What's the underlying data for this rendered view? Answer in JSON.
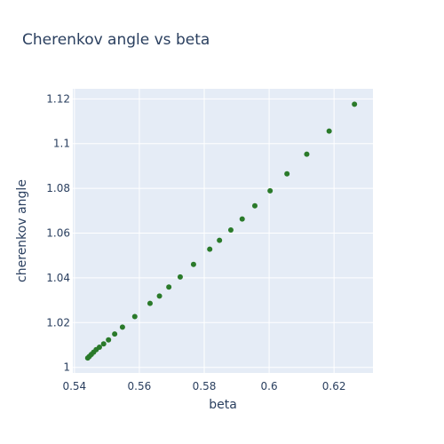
{
  "chart_data": {
    "type": "scatter",
    "title": "Cherenkov angle vs beta",
    "xlabel": "beta",
    "ylabel": "cherenkov angle",
    "xlim": [
      0.5395,
      0.632
    ],
    "ylim": [
      0.9975,
      1.1245
    ],
    "xticks": [
      0.54,
      0.56,
      0.58,
      0.6,
      0.62
    ],
    "xtick_labels": [
      "0.54",
      "0.56",
      "0.58",
      "0.6",
      "0.62"
    ],
    "yticks": [
      1.0,
      1.02,
      1.04,
      1.06,
      1.08,
      1.1,
      1.12
    ],
    "ytick_labels": [
      "1",
      "1.02",
      "1.04",
      "1.06",
      "1.08",
      "1.1",
      "1.12"
    ],
    "grid": true,
    "colors": {
      "plot_bg": "#e5ecf6",
      "grid": "#ffffff",
      "marker": "#2a7a2a"
    },
    "series": [
      {
        "x": [
          0.5441,
          0.5446,
          0.5452,
          0.5459,
          0.5467,
          0.5477,
          0.549,
          0.5505,
          0.5524,
          0.5548,
          0.5586,
          0.5633,
          0.5662,
          0.5691,
          0.5726,
          0.5767,
          0.5817,
          0.5847,
          0.5882,
          0.5917,
          0.5956,
          0.6003,
          0.6055,
          0.6116,
          0.6185,
          0.6263
        ],
        "y": [
          1.0042,
          1.0049,
          1.0058,
          1.0068,
          1.0079,
          1.009,
          1.0105,
          1.0123,
          1.0149,
          1.018,
          1.0227,
          1.0286,
          1.0319,
          1.0359,
          1.0404,
          1.046,
          1.0528,
          1.0568,
          1.0614,
          1.0663,
          1.0722,
          1.0789,
          1.0865,
          1.0953,
          1.1056,
          1.1176
        ]
      }
    ]
  }
}
